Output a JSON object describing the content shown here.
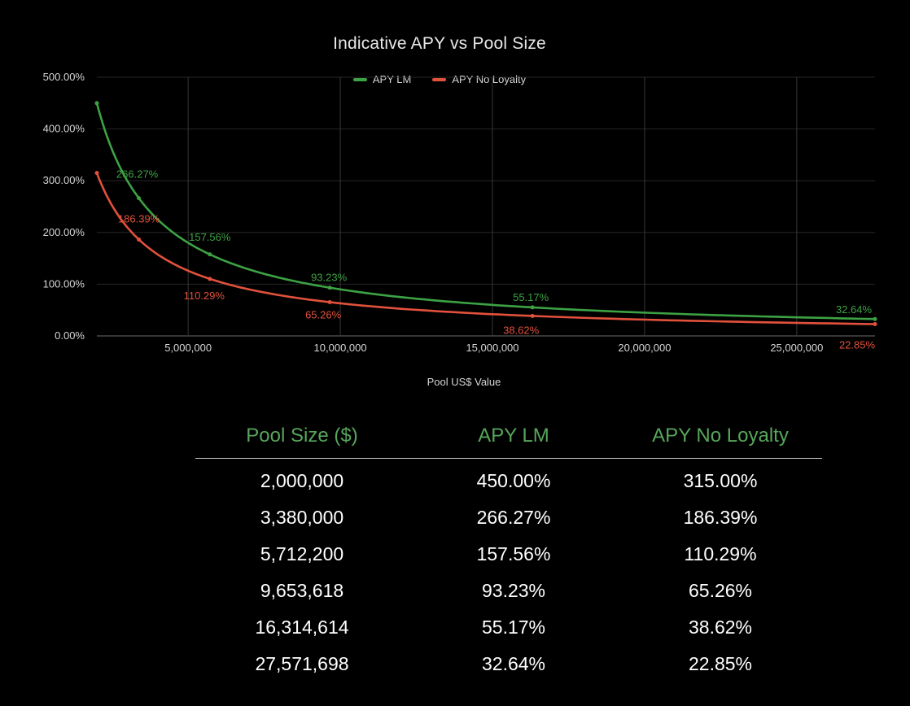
{
  "page": {
    "background": "#000000"
  },
  "chart": {
    "title": "Indicative APY vs Pool Size",
    "x_axis_label": "Pool US$ Value",
    "legend": [
      {
        "label": "APY LM",
        "color": "#3da244"
      },
      {
        "label": "APY No Loyalty",
        "color": "#e2513c"
      }
    ]
  },
  "chart_data": {
    "type": "line",
    "title": "Indicative APY vs Pool Size",
    "xlabel": "Pool US$ Value",
    "ylabel": "",
    "x": [
      2000000,
      3380000,
      5712200,
      9653618,
      16314614,
      27571698
    ],
    "series": [
      {
        "name": "APY LM",
        "color": "#3da244",
        "values": [
          450.0,
          266.27,
          157.56,
          93.23,
          55.17,
          32.64
        ],
        "point_labels": [
          null,
          "266.27%",
          "157.56%",
          "93.23%",
          "55.17%",
          "32.64%"
        ]
      },
      {
        "name": "APY No Loyalty",
        "color": "#e2513c",
        "values": [
          315.0,
          186.39,
          110.29,
          65.26,
          38.62,
          22.85
        ],
        "point_labels": [
          null,
          "186.39%",
          "110.29%",
          "65.26%",
          "38.62%",
          "22.85%"
        ]
      }
    ],
    "xlim": [
      2000000,
      27571698
    ],
    "ylim": [
      0,
      500
    ],
    "x_ticks": [
      5000000,
      10000000,
      15000000,
      20000000,
      25000000
    ],
    "x_tick_labels": [
      "5,000,000",
      "10,000,000",
      "15,000,000",
      "20,000,000",
      "25,000,000"
    ],
    "y_ticks": [
      0,
      100,
      200,
      300,
      400,
      500
    ],
    "y_tick_labels": [
      "0.00%",
      "100.00%",
      "200.00%",
      "300.00%",
      "400.00%",
      "500.00%"
    ],
    "grid": true,
    "legend_position": "top",
    "colors": {
      "grid_vertical": "#383838",
      "grid_horizontal": "#262626",
      "zero_axis": "#6e6e6e",
      "tick_text": "#d6d6d6"
    }
  },
  "table": {
    "header_color": "#57a65b",
    "headers": [
      "Pool Size ($)",
      "APY LM",
      "APY No Loyalty"
    ],
    "rows": [
      [
        "2,000,000",
        "450.00%",
        "315.00%"
      ],
      [
        "3,380,000",
        "266.27%",
        "186.39%"
      ],
      [
        "5,712,200",
        "157.56%",
        "110.29%"
      ],
      [
        "9,653,618",
        "93.23%",
        "65.26%"
      ],
      [
        "16,314,614",
        "55.17%",
        "38.62%"
      ],
      [
        "27,571,698",
        "32.64%",
        "22.85%"
      ]
    ]
  }
}
